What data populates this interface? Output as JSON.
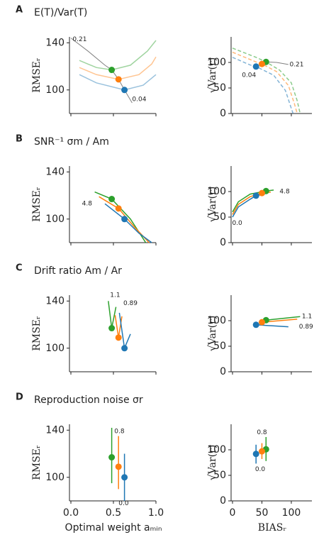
{
  "chart_data": [
    {
      "type": "line",
      "panel": "A",
      "title": "E(T)/Var(T)",
      "ylabel": "RMSEᵣ",
      "xlim": [
        0,
        1
      ],
      "ylim": [
        80,
        145
      ],
      "xticks": [
        {
          "value": 0,
          "label": "0.0"
        },
        {
          "value": 0.5,
          "label": "0.5"
        },
        {
          "value": 1,
          "label": "1.0"
        }
      ],
      "yticks": [
        100,
        140
      ],
      "show_xtick_labels": false,
      "alpha": 0.45,
      "series": [
        {
          "color": "#2ca02c",
          "x": [
            0.1,
            0.3,
            0.48,
            0.7,
            0.9,
            1.0
          ],
          "values": [
            125,
            119,
            117,
            121,
            133,
            142
          ]
        },
        {
          "color": "#ff7f0e",
          "x": [
            0.1,
            0.3,
            0.56,
            0.8,
            0.95,
            1.0
          ],
          "values": [
            119,
            113,
            109,
            113,
            122,
            128
          ]
        },
        {
          "color": "#1f77b4",
          "x": [
            0.1,
            0.3,
            0.63,
            0.85,
            1.0
          ],
          "values": [
            113,
            106,
            100,
            104,
            113
          ]
        },
        {
          "color": "#808080",
          "x": [
            0.0,
            0.2,
            0.4,
            0.48,
            0.56,
            0.63,
            0.72
          ],
          "values": [
            144,
            133,
            121,
            117,
            109,
            100,
            89
          ]
        }
      ],
      "points": {
        "x": [
          0.48,
          0.56,
          0.63
        ],
        "values": [
          117,
          109,
          100
        ],
        "colors": [
          "#2ca02c",
          "#ff7f0e",
          "#1f77b4"
        ]
      },
      "annotations": [
        "0.21",
        "0.04"
      ]
    },
    {
      "type": "line",
      "ylabel": "√Var(r)",
      "xlim": [
        0,
        135
      ],
      "ylim": [
        0,
        150
      ],
      "xticks": [
        0,
        50,
        100
      ],
      "yticks": [
        0,
        50,
        100
      ],
      "show_xtick_labels": false,
      "alpha": 0.55,
      "dashed": true,
      "series": [
        {
          "color": "#2ca02c",
          "x": [
            0,
            40,
            57,
            80,
            100,
            110,
            115
          ],
          "values": [
            128,
            110,
            101,
            85,
            60,
            25,
            0
          ]
        },
        {
          "color": "#ff7f0e",
          "x": [
            0,
            40,
            50,
            75,
            95,
            105,
            110
          ],
          "values": [
            120,
            101,
            97,
            82,
            55,
            20,
            0
          ]
        },
        {
          "color": "#1f77b4",
          "x": [
            0,
            30,
            40,
            70,
            90,
            100,
            103
          ],
          "values": [
            110,
            95,
            92,
            75,
            45,
            10,
            0
          ]
        },
        {
          "color": "#808080",
          "x": [
            57,
            75,
            95
          ],
          "values": [
            101,
            100,
            96
          ]
        }
      ],
      "points": {
        "x": [
          57,
          50,
          40
        ],
        "values": [
          101,
          97,
          92
        ],
        "colors": [
          "#2ca02c",
          "#ff7f0e",
          "#1f77b4"
        ]
      },
      "annotations": [
        "0.21",
        "0.04"
      ]
    },
    {
      "type": "line",
      "panel": "B",
      "title": "SNR⁻¹ σm / Am",
      "ylabel": "RMSEᵣ",
      "xlim": [
        0,
        1
      ],
      "ylim": [
        80,
        145
      ],
      "xticks": [
        {
          "value": 0,
          "label": "0.0"
        },
        {
          "value": 0.5,
          "label": "0.5"
        },
        {
          "value": 1,
          "label": "1.0"
        }
      ],
      "yticks": [
        100,
        140
      ],
      "show_xtick_labels": false,
      "series": [
        {
          "color": "#2ca02c",
          "x": [
            0.28,
            0.48,
            0.7,
            0.88
          ],
          "values": [
            123,
            117,
            100,
            80
          ]
        },
        {
          "color": "#ff7f0e",
          "x": [
            0.33,
            0.56,
            0.75,
            0.92
          ],
          "values": [
            119,
            109,
            93,
            80
          ]
        },
        {
          "color": "#1f77b4",
          "x": [
            0.4,
            0.63,
            0.8,
            0.95
          ],
          "values": [
            113,
            100,
            88,
            80
          ]
        }
      ],
      "points": {
        "x": [
          0.48,
          0.56,
          0.63
        ],
        "values": [
          117,
          109,
          100
        ],
        "colors": [
          "#2ca02c",
          "#ff7f0e",
          "#1f77b4"
        ]
      },
      "annotations": [
        "4.8"
      ]
    },
    {
      "type": "line",
      "ylabel": "√Var(r)",
      "xlim": [
        0,
        135
      ],
      "ylim": [
        0,
        150
      ],
      "xticks": [
        0,
        50,
        100
      ],
      "yticks": [
        0,
        50,
        100
      ],
      "show_xtick_labels": false,
      "series": [
        {
          "color": "#2ca02c",
          "x": [
            0,
            10,
            30,
            57,
            70
          ],
          "values": [
            60,
            80,
            95,
            101,
            103
          ]
        },
        {
          "color": "#ff7f0e",
          "x": [
            0,
            10,
            30,
            50,
            65
          ],
          "values": [
            55,
            75,
            90,
            97,
            99
          ]
        },
        {
          "color": "#1f77b4",
          "x": [
            0,
            10,
            30,
            40,
            55
          ],
          "values": [
            50,
            70,
            85,
            92,
            95
          ]
        }
      ],
      "points": {
        "x": [
          57,
          50,
          40
        ],
        "values": [
          101,
          97,
          92
        ],
        "colors": [
          "#2ca02c",
          "#ff7f0e",
          "#1f77b4"
        ]
      },
      "annotations": [
        "4.8",
        "0.0"
      ]
    },
    {
      "type": "line",
      "panel": "C",
      "title": "Drift ratio Am / Ar",
      "ylabel": "RMSEᵣ",
      "xlim": [
        0,
        1
      ],
      "ylim": [
        80,
        145
      ],
      "xticks": [
        {
          "value": 0,
          "label": "0.0"
        },
        {
          "value": 0.5,
          "label": "0.5"
        },
        {
          "value": 1,
          "label": "1.0"
        }
      ],
      "yticks": [
        100,
        140
      ],
      "show_xtick_labels": false,
      "series": [
        {
          "color": "#2ca02c",
          "x": [
            0.44,
            0.48,
            0.53
          ],
          "values": [
            140,
            117,
            135
          ]
        },
        {
          "color": "#ff7f0e",
          "x": [
            0.52,
            0.56,
            0.6
          ],
          "values": [
            128,
            109,
            127
          ]
        },
        {
          "color": "#1f77b4",
          "x": [
            0.57,
            0.63,
            0.7
          ],
          "values": [
            130,
            100,
            112
          ]
        }
      ],
      "points": {
        "x": [
          0.48,
          0.56,
          0.63
        ],
        "values": [
          117,
          109,
          100
        ],
        "colors": [
          "#2ca02c",
          "#ff7f0e",
          "#1f77b4"
        ]
      },
      "annotations": [
        "1.1",
        "0.89"
      ]
    },
    {
      "type": "line",
      "ylabel": "√Var(r)",
      "xlim": [
        0,
        135
      ],
      "ylim": [
        0,
        150
      ],
      "xticks": [
        0,
        50,
        100
      ],
      "yticks": [
        0,
        50,
        100
      ],
      "show_xtick_labels": false,
      "series": [
        {
          "color": "#2ca02c",
          "x": [
            57,
            115
          ],
          "values": [
            101,
            108
          ]
        },
        {
          "color": "#ff7f0e",
          "x": [
            50,
            110
          ],
          "values": [
            97,
            103
          ]
        },
        {
          "color": "#1f77b4",
          "x": [
            40,
            95
          ],
          "values": [
            92,
            88
          ]
        }
      ],
      "points": {
        "x": [
          57,
          50,
          40
        ],
        "values": [
          101,
          97,
          92
        ],
        "colors": [
          "#2ca02c",
          "#ff7f0e",
          "#1f77b4"
        ]
      },
      "annotations": [
        "1.1",
        "0.89"
      ]
    },
    {
      "type": "errorbar",
      "panel": "D",
      "title": "Reproduction noise σr",
      "ylabel": "RMSEᵣ",
      "xlabel": "Optimal weight aₘᵢₙ",
      "xlim": [
        0,
        1
      ],
      "ylim": [
        80,
        145
      ],
      "xticks": [
        {
          "value": 0,
          "label": "0.0"
        },
        {
          "value": 0.5,
          "label": "0.5"
        },
        {
          "value": 1,
          "label": "1.0"
        }
      ],
      "yticks": [
        100,
        140
      ],
      "show_xtick_labels": true,
      "points": {
        "x": [
          0.48,
          0.56,
          0.63
        ],
        "values": [
          117,
          109,
          100
        ],
        "low": [
          95,
          90,
          80
        ],
        "high": [
          142,
          135,
          120
        ],
        "colors": [
          "#2ca02c",
          "#ff7f0e",
          "#1f77b4"
        ]
      },
      "annotations": [
        "0.8",
        "0.0"
      ]
    },
    {
      "type": "errorbar",
      "ylabel": "√Var(r)",
      "xlabel": "BIASᵣ",
      "xlim": [
        0,
        135
      ],
      "ylim": [
        0,
        150
      ],
      "xticks": [
        0,
        50,
        100
      ],
      "yticks": [
        0,
        50,
        100
      ],
      "show_xtick_labels": true,
      "points": {
        "x": [
          57,
          50,
          40
        ],
        "values": [
          101,
          97,
          92
        ],
        "low": [
          78,
          82,
          73
        ],
        "high": [
          125,
          113,
          110
        ],
        "colors": [
          "#2ca02c",
          "#ff7f0e",
          "#1f77b4"
        ]
      },
      "annotations": [
        "0.8",
        "0.0"
      ]
    }
  ]
}
